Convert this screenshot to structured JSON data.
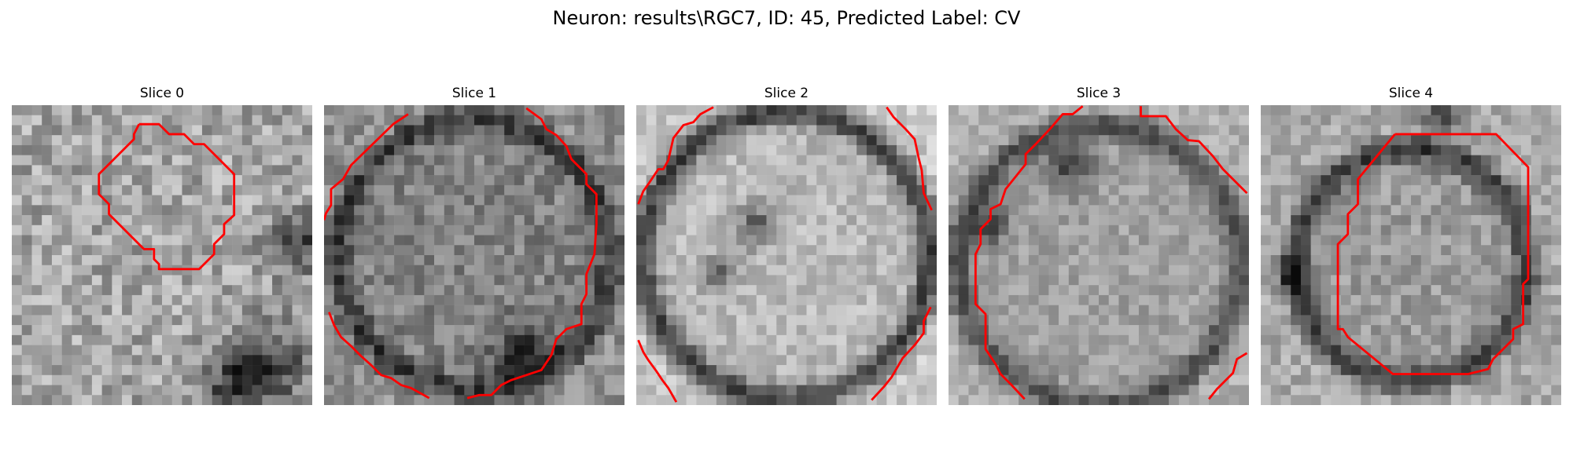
{
  "figure": {
    "title": "Neuron: results\\RGC7, ID: 45, Predicted Label: CV"
  },
  "colors": {
    "contour": "#ff0000",
    "background": "#ffffff"
  },
  "panels": [
    {
      "label": "Slice 0"
    },
    {
      "label": "Slice 1"
    },
    {
      "label": "Slice 2"
    },
    {
      "label": "Slice 3"
    },
    {
      "label": "Slice 4"
    }
  ]
}
